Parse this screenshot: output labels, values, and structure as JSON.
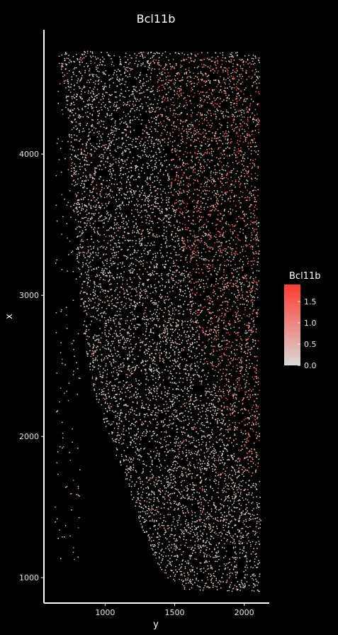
{
  "chart_data": {
    "type": "scatter",
    "title": "Bcl11b",
    "xlabel": "y",
    "ylabel": "x",
    "xlim": [
      560,
      2180
    ],
    "ylim": [
      820,
      4880
    ],
    "x_ticks": [
      1000,
      1500,
      2000
    ],
    "y_ticks": [
      1000,
      2000,
      3000,
      4000
    ],
    "x_tick_labels": [
      "1000",
      "1500",
      "2000"
    ],
    "y_tick_labels": [
      "1000",
      "2000",
      "3000",
      "4000"
    ],
    "grid": false,
    "background": "#000000",
    "legend": {
      "title": "Bcl11b",
      "placement": "right",
      "min": 0.0,
      "max": 1.9,
      "ticks": [
        0.0,
        0.5,
        1.0,
        1.5
      ],
      "tick_labels": [
        "0.0",
        "0.5",
        "1.0",
        "1.5"
      ],
      "color_low": "#d9d9d9",
      "color_high": "#ff3b30"
    },
    "shape_outline": [
      [
        650,
        4720
      ],
      [
        860,
        4730
      ],
      [
        1100,
        4720
      ],
      [
        1400,
        4725
      ],
      [
        1700,
        4720
      ],
      [
        2000,
        4720
      ],
      [
        2110,
        4700
      ],
      [
        2110,
        4300
      ],
      [
        2100,
        3800
      ],
      [
        2110,
        3300
      ],
      [
        2100,
        2800
      ],
      [
        2110,
        2300
      ],
      [
        2110,
        1800
      ],
      [
        2120,
        1400
      ],
      [
        2110,
        900
      ],
      [
        1900,
        900
      ],
      [
        1700,
        910
      ],
      [
        1580,
        900
      ],
      [
        1480,
        960
      ],
      [
        1400,
        1060
      ],
      [
        1300,
        1250
      ],
      [
        1180,
        1600
      ],
      [
        1050,
        1950
      ],
      [
        920,
        2300
      ],
      [
        840,
        2750
      ],
      [
        800,
        3200
      ],
      [
        770,
        3700
      ],
      [
        730,
        4200
      ],
      [
        690,
        4550
      ],
      [
        650,
        4720
      ]
    ],
    "red_region": [
      [
        1330,
        4680
      ],
      [
        1700,
        4690
      ],
      [
        2100,
        4650
      ],
      [
        2110,
        4100
      ],
      [
        2100,
        3500
      ],
      [
        2110,
        2900
      ],
      [
        2110,
        2300
      ],
      [
        2100,
        1700
      ],
      [
        2000,
        1700
      ],
      [
        1870,
        2100
      ],
      [
        1720,
        2500
      ],
      [
        1620,
        3000
      ],
      [
        1520,
        3500
      ],
      [
        1430,
        4000
      ],
      [
        1340,
        4400
      ]
    ],
    "point_count": 9000,
    "seed": 7
  }
}
